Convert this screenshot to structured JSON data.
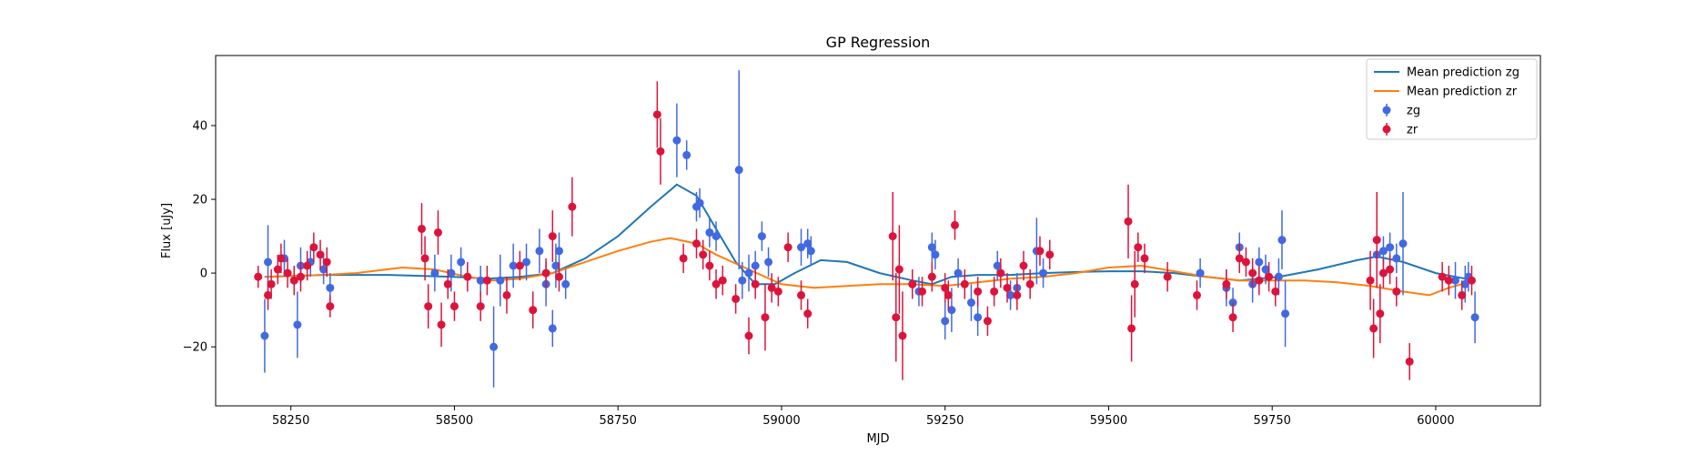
{
  "chart_data": {
    "type": "scatter",
    "title": "GP Regression",
    "xlabel": "MJD",
    "ylabel": "Flux [uJy]",
    "xlim": [
      58135,
      60160
    ],
    "ylim": [
      -36,
      59
    ],
    "xticks": [
      58250,
      58500,
      58750,
      59000,
      59250,
      59500,
      59750,
      60000
    ],
    "yticks": [
      -20,
      0,
      20,
      40
    ],
    "grid": false,
    "legend_position": "top-right",
    "legend": [
      "Mean prediction zg",
      "Mean prediction zr",
      "zg",
      "zr"
    ],
    "colors": {
      "zg_line": "#1f77b4",
      "zr_line": "#ff7f0e",
      "zg_points": "#4169e1",
      "zr_points": "#dc143c"
    },
    "series": [
      {
        "name": "Mean prediction zg",
        "kind": "line",
        "x": [
          58210,
          58300,
          58400,
          58500,
          58550,
          58600,
          58650,
          58700,
          58750,
          58800,
          58840,
          58870,
          58900,
          58930,
          58960,
          58990,
          59020,
          59060,
          59100,
          59150,
          59200,
          59230,
          59260,
          59300,
          59350,
          59400,
          59450,
          59500,
          59550,
          59600,
          59650,
          59700,
          59760,
          59820,
          59880,
          59910,
          59950,
          60000,
          60060
        ],
        "y": [
          -1,
          -0.5,
          -0.5,
          -1,
          -1.5,
          -1,
          0,
          4,
          10,
          18,
          24,
          21,
          12,
          3,
          -3,
          -3,
          0,
          3.5,
          3,
          0,
          -2,
          -3,
          -1,
          -0.5,
          -0.5,
          0,
          0.3,
          0.5,
          0.5,
          0,
          -1,
          -2,
          -1,
          1,
          3.5,
          4.5,
          3,
          0,
          -2
        ]
      },
      {
        "name": "Mean prediction zr",
        "kind": "line",
        "x": [
          58210,
          58300,
          58350,
          58420,
          58470,
          58520,
          58560,
          58600,
          58650,
          58700,
          58750,
          58800,
          58830,
          58870,
          58900,
          58950,
          59000,
          59050,
          59100,
          59150,
          59200,
          59250,
          59300,
          59350,
          59400,
          59450,
          59500,
          59550,
          59600,
          59650,
          59700,
          59750,
          59800,
          59850,
          59900,
          59950,
          59990,
          60020,
          60060
        ],
        "y": [
          -1,
          -0.5,
          0,
          1.5,
          1,
          -1,
          -2,
          -1.5,
          0,
          3,
          6,
          8.5,
          9.5,
          8,
          5,
          1,
          -3,
          -4,
          -3.5,
          -3,
          -3,
          -3.5,
          -2.5,
          -1.5,
          -1,
          0,
          1.5,
          2,
          0.5,
          -1,
          -2,
          -2,
          -2,
          -2.5,
          -3.5,
          -5,
          -6,
          -4,
          -2
        ]
      },
      {
        "name": "zg",
        "kind": "errorbar",
        "x": [
          58210,
          58215,
          58240,
          58260,
          58265,
          58280,
          58300,
          58310,
          58470,
          58495,
          58510,
          58540,
          58560,
          58570,
          58590,
          58610,
          58630,
          58640,
          58650,
          58655,
          58660,
          58670,
          58840,
          58855,
          58870,
          58875,
          58890,
          58900,
          58935,
          58940,
          58950,
          58960,
          58970,
          58980,
          59030,
          59040,
          59045,
          59200,
          59210,
          59230,
          59235,
          59250,
          59260,
          59270,
          59290,
          59300,
          59330,
          59350,
          59360,
          59390,
          59400,
          59640,
          59680,
          59690,
          59700,
          59720,
          59730,
          59740,
          59760,
          59765,
          59770,
          59910,
          59920,
          59930,
          59940,
          59950,
          60030,
          60045,
          60050,
          60060
        ],
        "y": [
          -17,
          3,
          4,
          -14,
          2,
          3,
          1,
          -4,
          0,
          0,
          3,
          -2,
          -20,
          -2,
          2,
          3,
          6,
          -3,
          -15,
          2,
          6,
          -3,
          36,
          32,
          18,
          19,
          11,
          10,
          28,
          -2,
          0,
          2,
          10,
          3,
          7,
          8,
          6,
          -3,
          -5,
          7,
          5,
          -13,
          -10,
          0,
          -8,
          -12,
          2,
          -6,
          -4,
          6,
          0,
          0,
          -4,
          -8,
          7,
          -3,
          3,
          1,
          -1,
          9,
          -11,
          5,
          6,
          7,
          4,
          8,
          -2,
          -3,
          -1,
          -12
        ],
        "err": [
          10,
          10,
          5,
          9,
          5,
          4,
          4,
          4,
          5,
          5,
          4,
          4,
          11,
          7,
          6,
          5,
          6,
          6,
          5,
          6,
          5,
          4,
          10,
          4,
          4,
          4,
          4,
          4,
          27,
          5,
          5,
          4,
          4,
          4,
          5,
          4,
          4,
          4,
          4,
          4,
          4,
          5,
          6,
          4,
          5,
          5,
          4,
          4,
          4,
          9,
          4,
          4,
          5,
          4,
          4,
          5,
          4,
          4,
          5,
          8,
          9,
          5,
          4,
          4,
          4,
          14,
          5,
          5,
          4,
          7
        ]
      },
      {
        "name": "zr",
        "kind": "errorbar",
        "x": [
          58200,
          58215,
          58220,
          58230,
          58235,
          58245,
          58255,
          58265,
          58275,
          58285,
          58295,
          58305,
          58310,
          58450,
          58455,
          58460,
          58475,
          58480,
          58490,
          58500,
          58520,
          58540,
          58550,
          58580,
          58600,
          58620,
          58640,
          58650,
          58660,
          58680,
          58810,
          58815,
          58850,
          58870,
          58880,
          58890,
          58900,
          58910,
          58930,
          58950,
          58960,
          58975,
          58985,
          58995,
          59010,
          59030,
          59040,
          59170,
          59175,
          59180,
          59185,
          59200,
          59215,
          59230,
          59250,
          59255,
          59265,
          59280,
          59300,
          59315,
          59325,
          59335,
          59345,
          59360,
          59370,
          59380,
          59395,
          59410,
          59530,
          59535,
          59540,
          59545,
          59555,
          59590,
          59635,
          59680,
          59690,
          59700,
          59710,
          59720,
          59730,
          59745,
          59755,
          59900,
          59905,
          59910,
          59915,
          59920,
          59930,
          59940,
          59960,
          60010,
          60020,
          60040,
          60055
        ],
        "y": [
          -1,
          -6,
          -3,
          1,
          4,
          0,
          -2,
          -1,
          2,
          7,
          5,
          3,
          -9,
          12,
          4,
          -9,
          11,
          -14,
          -3,
          -9,
          -1,
          -9,
          -2,
          -6,
          2,
          -10,
          0,
          10,
          -1,
          18,
          43,
          33,
          4,
          8,
          5,
          2,
          -3,
          -2,
          -7,
          -17,
          -3,
          -12,
          -4,
          -5,
          7,
          -6,
          -11,
          10,
          -12,
          1,
          -17,
          -3,
          -5,
          -1,
          -4,
          -6,
          13,
          -3,
          -5,
          -13,
          -5,
          0,
          -4,
          -6,
          2,
          -3,
          6,
          5,
          14,
          -15,
          -3,
          7,
          4,
          -1,
          -6,
          -3,
          -12,
          4,
          3,
          0,
          -2,
          -1,
          -5,
          -2,
          -15,
          9,
          -11,
          0,
          1,
          -5,
          -24,
          -1,
          -2,
          -6,
          -2
        ],
        "err": [
          3,
          4,
          4,
          4,
          4,
          4,
          4,
          4,
          4,
          4,
          4,
          4,
          3,
          7,
          6,
          6,
          6,
          6,
          4,
          4,
          4,
          4,
          4,
          5,
          4,
          5,
          4,
          7,
          4,
          8,
          9,
          9,
          4,
          4,
          4,
          4,
          4,
          4,
          4,
          5,
          4,
          9,
          4,
          4,
          4,
          4,
          4,
          12,
          12,
          12,
          12,
          4,
          4,
          4,
          4,
          4,
          4,
          4,
          4,
          4,
          4,
          4,
          4,
          4,
          4,
          4,
          4,
          4,
          10,
          9,
          9,
          4,
          4,
          4,
          4,
          4,
          4,
          4,
          4,
          4,
          4,
          4,
          4,
          8,
          8,
          13,
          8,
          4,
          4,
          4,
          5,
          4,
          4,
          4,
          4
        ]
      }
    ]
  }
}
